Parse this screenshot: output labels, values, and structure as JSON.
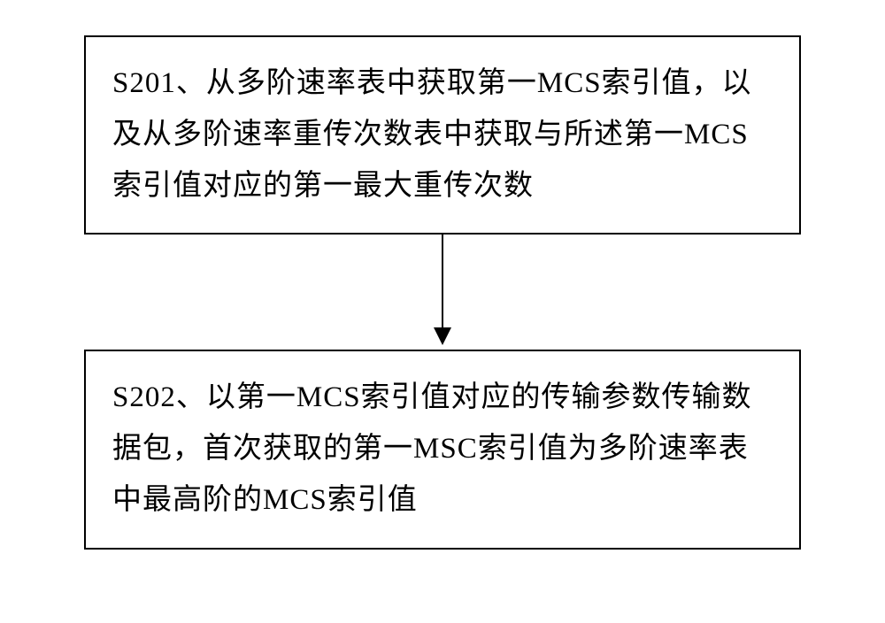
{
  "flowchart": {
    "type": "flowchart",
    "background_color": "#ffffff",
    "box_border_color": "#000000",
    "box_border_width": 2,
    "text_color": "#000000",
    "font_size": 33,
    "arrow_color": "#000000",
    "nodes": [
      {
        "id": "s201",
        "text": "S201、从多阶速率表中获取第一MCS索引值，以及从多阶速率重传次数表中获取与所述第一MCS索引值对应的第一最大重传次数"
      },
      {
        "id": "s202",
        "text": "S202、以第一MCS索引值对应的传输参数传输数据包，首次获取的第一MSC索引值为多阶速率表中最高阶的MCS索引值"
      }
    ],
    "edges": [
      {
        "from": "s201",
        "to": "s202"
      }
    ]
  }
}
